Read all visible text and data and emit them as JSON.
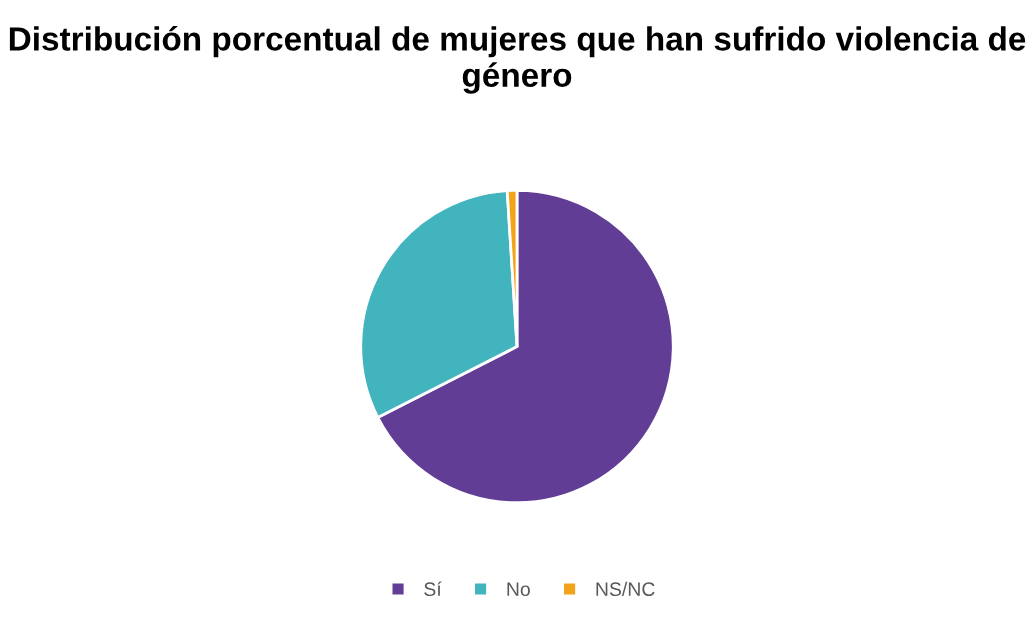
{
  "chart_data": {
    "type": "pie",
    "title": "Distribución porcentual de mujeres que han sufrido violencia de género",
    "categories": [
      "Sí",
      "No",
      "NS/NC"
    ],
    "values": [
      67.5,
      31.5,
      1
    ],
    "colors": [
      "#613d96",
      "#42b4bd",
      "#f2a31c"
    ],
    "legend": "bottom"
  }
}
